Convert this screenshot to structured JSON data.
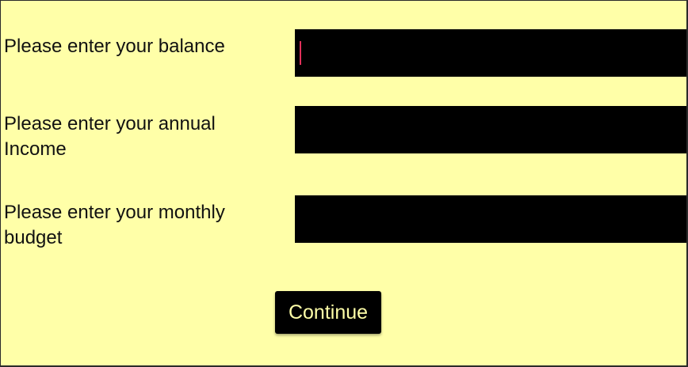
{
  "form": {
    "balance": {
      "label": "Please enter your balance",
      "value": "",
      "placeholder": ""
    },
    "income": {
      "label": "Please enter your annual Income",
      "value": "",
      "placeholder": ""
    },
    "budget": {
      "label": "Please enter your monthly budget",
      "value": "",
      "placeholder": ""
    }
  },
  "actions": {
    "continue_label": "Continue"
  },
  "colors": {
    "background": "#ffffa8",
    "field": "#000000",
    "cursor": "#e0305a",
    "button_text": "#ffffa8"
  }
}
